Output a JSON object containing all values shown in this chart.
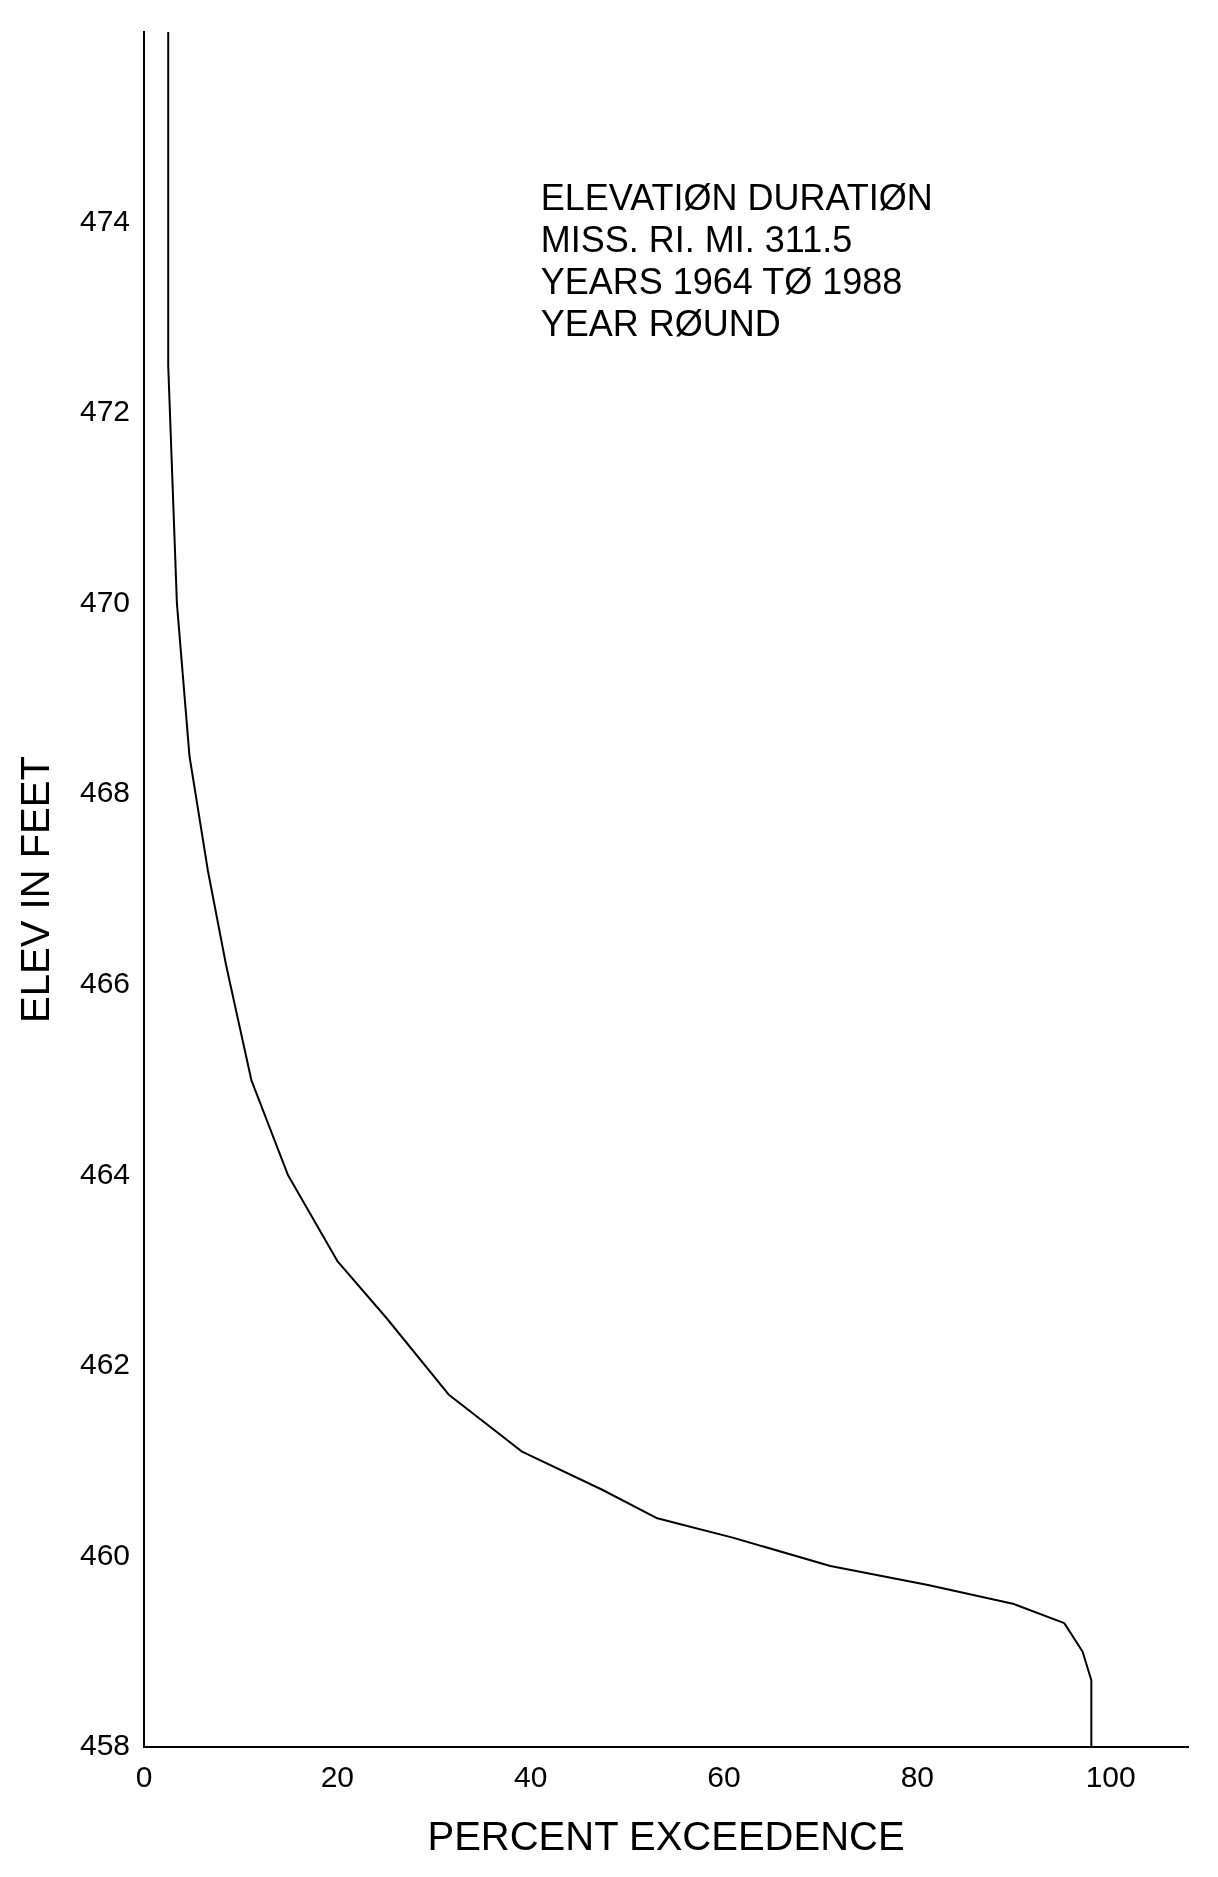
{
  "chart_data": {
    "type": "line",
    "xlabel": "PERCENT EXCEEDENCE",
    "ylabel": "ELEV IN FEET",
    "annotations": [
      "ELEVATIØN DURATIØN",
      "MISS. RI. MI. 311.5",
      "YEARS 1964 TØ 1988",
      "YEAR RØUND"
    ],
    "x": [
      2.5,
      2.5,
      3.4,
      4.7,
      6.6,
      8.5,
      11.1,
      14.9,
      20,
      25.1,
      31.5,
      39.1,
      47.4,
      53.1,
      60.8,
      71,
      81.1,
      90,
      95.2,
      97.1,
      98,
      98
    ],
    "series": [
      {
        "color": "#000000",
        "values": [
          476,
          472.5,
          470,
          468.4,
          467.2,
          466.2,
          465.0,
          464.0,
          463.1,
          462.5,
          461.7,
          461.1,
          460.7,
          460.4,
          460.2,
          459.9,
          459.7,
          459.5,
          459.3,
          459.0,
          458.7,
          458
        ]
      }
    ],
    "xlim": [
      0,
      108
    ],
    "xticks": [
      0,
      20,
      40,
      60,
      80,
      100
    ],
    "ylim": [
      458,
      476
    ],
    "yticks": [
      458,
      460,
      462,
      464,
      466,
      468,
      470,
      472,
      474
    ],
    "grid": false,
    "legend": false,
    "marker": "none",
    "line_style": "solid"
  }
}
